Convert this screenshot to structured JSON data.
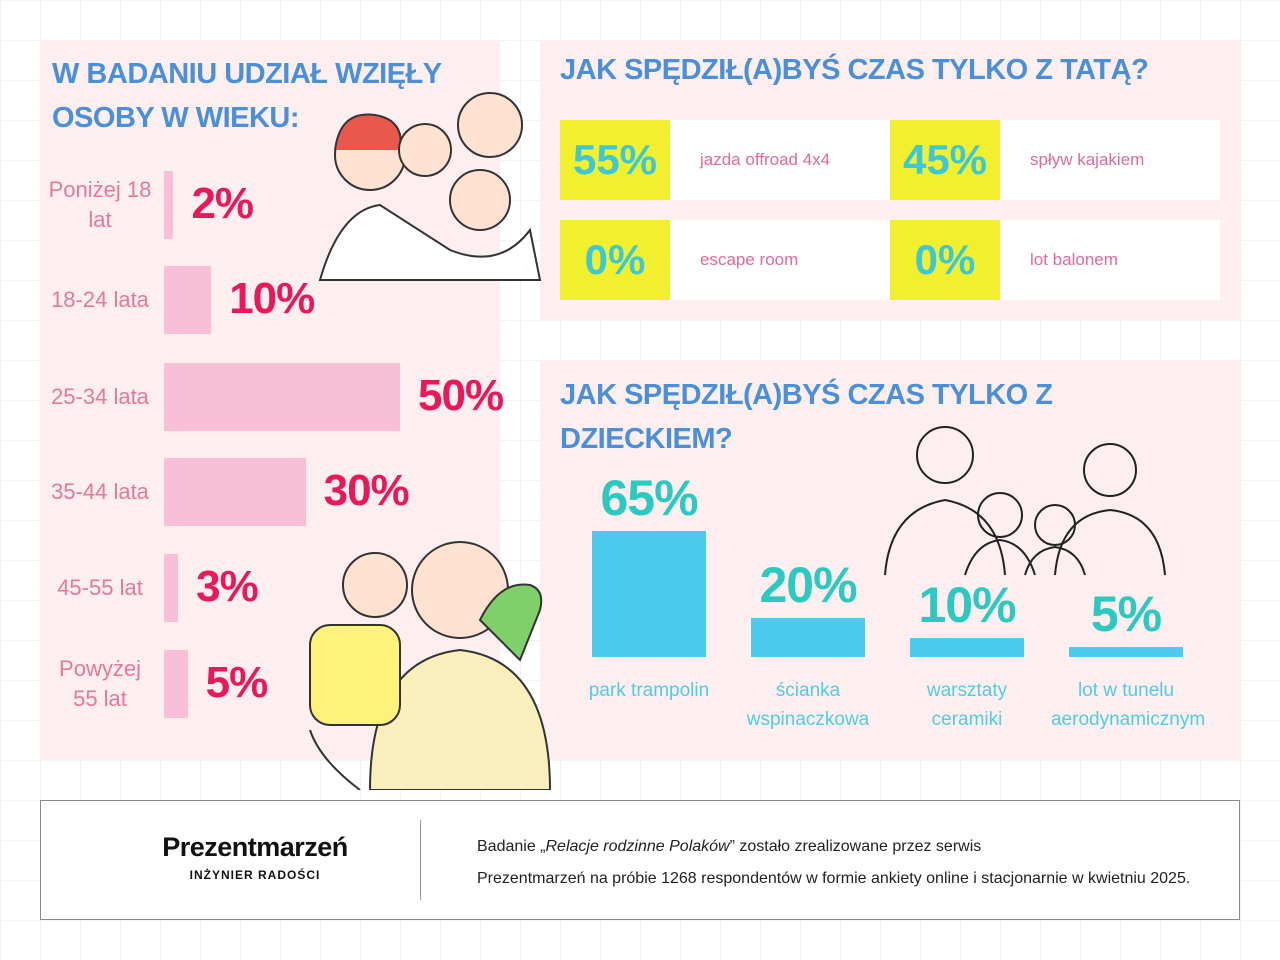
{
  "chart_data": [
    {
      "type": "hbar",
      "title": "W BADANIU UDZIAŁ WZIĘŁY OSOBY W WIEKU:",
      "categories": [
        "Poniżej 18 lat",
        "18-24 lata",
        "25-34 lata",
        "35-44 lata",
        "45-55 lat",
        "Powyżej 55 lat"
      ],
      "values": [
        2,
        10,
        50,
        30,
        3,
        5
      ],
      "value_labels": [
        "2%",
        "10%",
        "50%",
        "30%",
        "3%",
        "5%"
      ],
      "color": "#f8bfd6"
    },
    {
      "type": "tiles",
      "title": "JAK SPĘDZIŁ(A)BYŚ CZAS TYLKO Z TATĄ?",
      "categories": [
        "jazda offroad 4x4",
        "spływ kajakiem",
        "escape room",
        "lot balonem"
      ],
      "values": [
        55,
        45,
        0,
        0
      ],
      "value_labels": [
        "55%",
        "45%",
        "0%",
        "0%"
      ],
      "color": "#f1ef2e"
    },
    {
      "type": "vbar",
      "title": "JAK SPĘDZIŁ(A)BYŚ CZAS TYLKO Z DZIECKIEM?",
      "categories": [
        "park trampolin",
        "ścianka wspinaczkowa",
        "warsztaty ceramiki",
        "lot w tunelu aerodynamicznym"
      ],
      "values": [
        65,
        20,
        10,
        5
      ],
      "value_labels": [
        "65%",
        "20%",
        "10%",
        "5%"
      ],
      "color": "#4ccbf0"
    }
  ],
  "footer": {
    "logo": "Prezentmarzeń",
    "tagline": "INŻYNIER RADOŚCI",
    "note_line1": [
      "Badanie „",
      "Relacje rodzinne Polaków",
      "” zostało zrealizowane przez serwis"
    ],
    "note_line2": "Prezentmarzeń na próbie 1268 respondentów w formie ankiety online i stacjonarnie w kwietniu 2025."
  }
}
